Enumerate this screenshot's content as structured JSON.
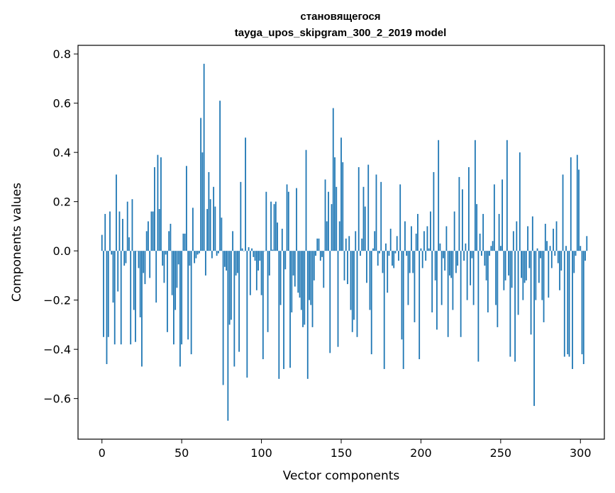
{
  "chart_data": {
    "type": "bar",
    "title_line1": "становящегося",
    "title_line2": "tayga_upos_skipgram_300_2_2019 model",
    "xlabel": "Vector components",
    "ylabel": "Components values",
    "xlim": [
      -15,
      315
    ],
    "ylim": [
      -0.765,
      0.835
    ],
    "xticks": [
      0,
      50,
      100,
      150,
      200,
      250,
      300
    ],
    "xtick_labels": [
      "0",
      "50",
      "100",
      "150",
      "200",
      "250",
      "300"
    ],
    "yticks": [
      -0.6,
      -0.4,
      -0.2,
      0.0,
      0.2,
      0.4,
      0.6,
      0.8
    ],
    "ytick_labels": [
      "−0.6",
      "−0.4",
      "−0.2",
      "0.0",
      "0.2",
      "0.4",
      "0.6",
      "0.8"
    ],
    "bar_color": "#1f77b4",
    "values": [
      0.065,
      -0.35,
      0.15,
      -0.46,
      -0.35,
      0.16,
      -0.015,
      -0.21,
      -0.38,
      0.31,
      -0.165,
      0.16,
      -0.38,
      0.13,
      -0.06,
      -0.05,
      0.2,
      0.055,
      -0.38,
      0.21,
      -0.24,
      -0.37,
      0.0,
      -0.07,
      -0.27,
      -0.47,
      -0.09,
      -0.135,
      0.08,
      0.12,
      -0.11,
      0.16,
      0.16,
      0.34,
      -0.21,
      0.39,
      0.17,
      0.38,
      -0.06,
      -0.13,
      -0.015,
      -0.33,
      0.08,
      0.11,
      -0.18,
      -0.38,
      -0.24,
      -0.15,
      -0.055,
      -0.47,
      -0.38,
      0.07,
      0.07,
      0.345,
      -0.36,
      -0.06,
      -0.42,
      0.175,
      -0.05,
      -0.03,
      -0.015,
      -0.01,
      0.54,
      0.4,
      0.76,
      -0.1,
      0.17,
      0.32,
      0.21,
      -0.03,
      0.26,
      0.18,
      -0.02,
      -0.01,
      0.61,
      0.135,
      -0.545,
      -0.065,
      -0.08,
      -0.69,
      -0.3,
      -0.28,
      0.08,
      -0.47,
      -0.1,
      -0.09,
      -0.41,
      0.28,
      0.01,
      0.0,
      0.46,
      -0.515,
      0.015,
      -0.18,
      0.01,
      -0.025,
      -0.04,
      -0.16,
      -0.08,
      -0.04,
      -0.18,
      -0.44,
      0.0,
      0.24,
      -0.33,
      -0.1,
      0.2,
      0.005,
      0.19,
      0.2,
      0.115,
      -0.52,
      -0.22,
      0.09,
      -0.48,
      -0.075,
      0.27,
      0.24,
      -0.475,
      -0.25,
      -0.1,
      -0.145,
      0.255,
      -0.17,
      -0.19,
      -0.24,
      -0.31,
      -0.3,
      0.41,
      -0.52,
      -0.2,
      -0.22,
      -0.31,
      -0.12,
      -0.02,
      0.05,
      0.05,
      -0.04,
      -0.025,
      -0.15,
      0.29,
      0.12,
      0.24,
      -0.415,
      0.19,
      0.58,
      0.38,
      0.26,
      -0.39,
      0.12,
      0.46,
      0.36,
      -0.12,
      0.05,
      -0.135,
      0.06,
      -0.24,
      -0.33,
      -0.28,
      0.08,
      -0.35,
      0.34,
      -0.02,
      0.05,
      0.26,
      0.18,
      -0.13,
      0.35,
      -0.24,
      -0.42,
      0.01,
      0.08,
      0.31,
      -0.06,
      -0.01,
      0.28,
      -0.09,
      -0.48,
      0.03,
      -0.17,
      -0.02,
      0.09,
      -0.06,
      -0.07,
      -0.01,
      0.06,
      -0.04,
      0.27,
      -0.36,
      -0.48,
      0.12,
      -0.02,
      -0.22,
      -0.09,
      0.1,
      -0.09,
      -0.29,
      0.07,
      0.15,
      -0.44,
      0.01,
      -0.07,
      0.08,
      -0.04,
      0.1,
      0.01,
      0.16,
      -0.25,
      0.32,
      -0.12,
      -0.32,
      0.45,
      0.03,
      -0.22,
      -0.03,
      -0.08,
      0.1,
      -0.35,
      -0.1,
      -0.11,
      -0.24,
      0.16,
      -0.09,
      -0.06,
      0.3,
      -0.35,
      0.25,
      -0.04,
      0.03,
      -0.2,
      0.34,
      -0.14,
      -0.03,
      -0.22,
      0.45,
      0.19,
      -0.45,
      0.07,
      -0.02,
      0.15,
      -0.06,
      -0.12,
      -0.25,
      -0.02,
      0.02,
      0.04,
      0.27,
      -0.22,
      -0.31,
      0.15,
      0.02,
      0.29,
      -0.16,
      -0.12,
      0.45,
      -0.1,
      -0.43,
      -0.15,
      0.08,
      -0.45,
      0.12,
      -0.26,
      0.4,
      -0.11,
      -0.2,
      -0.13,
      -0.12,
      0.1,
      -0.07,
      -0.34,
      0.14,
      -0.63,
      -0.2,
      0.01,
      -0.13,
      -0.03,
      -0.2,
      -0.29,
      0.11,
      0.04,
      -0.19,
      0.02,
      -0.07,
      0.09,
      -0.02,
      0.12,
      -0.05,
      -0.16,
      -0.08,
      0.31,
      -0.43,
      0.02,
      -0.42,
      -0.43,
      0.38,
      -0.48,
      -0.09,
      -0.02,
      0.39,
      0.33,
      0.02,
      -0.42,
      -0.46,
      -0.04,
      0.06
    ]
  }
}
